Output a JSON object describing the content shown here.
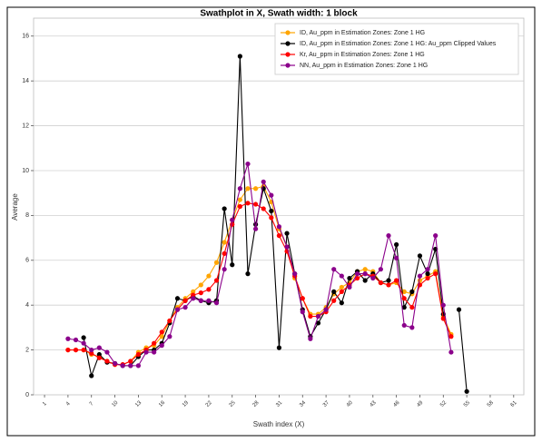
{
  "chart_data": {
    "type": "line",
    "title": "Swathplot in X, Swath width: 1 block",
    "x_label": "Swath index (X)",
    "y_label": "Average",
    "x": [
      4,
      5,
      6,
      7,
      8,
      9,
      10,
      11,
      12,
      13,
      14,
      15,
      16,
      17,
      18,
      19,
      20,
      21,
      22,
      23,
      24,
      25,
      26,
      27,
      28,
      29,
      30,
      31,
      32,
      33,
      34,
      35,
      36,
      37,
      38,
      39,
      40,
      41,
      42,
      43,
      44,
      45,
      46,
      47,
      48,
      49,
      50,
      51,
      52,
      53,
      54,
      55
    ],
    "series": [
      {
        "name": "ID, Au_ppm in Estimation Zones: Zone 1 HG",
        "color": "#ffa500",
        "values": [
          2.0,
          2.0,
          2.0,
          1.8,
          1.7,
          1.5,
          1.35,
          1.35,
          1.5,
          1.9,
          2.1,
          2.2,
          2.6,
          3.3,
          3.9,
          4.3,
          4.6,
          4.9,
          5.3,
          5.9,
          6.8,
          7.8,
          8.7,
          9.2,
          9.2,
          9.3,
          8.6,
          7.4,
          6.6,
          5.2,
          4.3,
          3.6,
          3.6,
          3.9,
          4.5,
          4.8,
          5.0,
          5.5,
          5.6,
          5.5,
          5.0,
          4.9,
          5.0,
          4.6,
          4.5,
          5.1,
          5.3,
          5.5,
          3.5,
          2.7,
          null,
          null
        ]
      },
      {
        "name": "ID, Au_ppm in Estimation Zones: Zone 1 HG: Au_ppm Clipped Values",
        "color": "#000000",
        "values": [
          null,
          null,
          2.55,
          0.85,
          1.8,
          1.45,
          1.4,
          1.3,
          1.3,
          1.7,
          2.0,
          2.0,
          2.3,
          3.2,
          4.3,
          4.2,
          4.4,
          4.2,
          4.1,
          4.2,
          8.3,
          5.8,
          15.1,
          5.4,
          7.6,
          9.2,
          8.2,
          2.1,
          7.2,
          5.4,
          3.8,
          2.6,
          3.2,
          3.8,
          4.6,
          4.1,
          5.2,
          5.5,
          5.1,
          5.4,
          5.0,
          5.1,
          6.7,
          3.9,
          4.6,
          6.2,
          5.4,
          6.5,
          3.6,
          null,
          3.8,
          0.15
        ]
      },
      {
        "name": "Kr, Au_ppm in Estimation Zones: Zone 1 HG",
        "color": "#ff0000",
        "values": [
          2.0,
          2.0,
          2.0,
          1.85,
          1.65,
          1.5,
          1.35,
          1.35,
          1.5,
          1.8,
          2.0,
          2.3,
          2.8,
          3.3,
          3.8,
          4.2,
          4.45,
          4.55,
          4.7,
          5.1,
          6.3,
          7.6,
          8.4,
          8.55,
          8.5,
          8.3,
          7.9,
          7.1,
          6.4,
          5.3,
          4.3,
          3.5,
          3.5,
          3.7,
          4.2,
          4.6,
          4.9,
          5.2,
          5.4,
          5.3,
          5.0,
          4.9,
          5.1,
          4.3,
          3.9,
          4.9,
          5.2,
          5.4,
          3.4,
          2.6,
          null,
          null
        ]
      },
      {
        "name": "NN, Au_ppm in Estimation Zones: Zone 1 HG",
        "color": "#8b008b",
        "values": [
          2.5,
          2.45,
          2.3,
          2.0,
          2.1,
          1.9,
          1.4,
          1.3,
          1.3,
          1.3,
          1.9,
          1.9,
          2.2,
          2.6,
          3.8,
          3.9,
          4.3,
          4.2,
          4.2,
          4.1,
          5.6,
          7.8,
          9.2,
          10.3,
          7.4,
          9.5,
          8.9,
          7.5,
          6.6,
          5.4,
          3.7,
          2.5,
          3.5,
          3.8,
          5.6,
          5.3,
          4.8,
          5.4,
          5.4,
          5.2,
          5.6,
          7.1,
          6.1,
          3.1,
          3.0,
          5.3,
          5.6,
          7.1,
          4.0,
          1.9,
          null,
          null
        ]
      }
    ],
    "xlim": [
      -0.4,
      62.3
    ],
    "ylim": [
      0,
      16.8
    ],
    "xticks": [
      1,
      4,
      7,
      10,
      13,
      16,
      19,
      22,
      25,
      28,
      31,
      34,
      37,
      40,
      43,
      46,
      49,
      52,
      55,
      58,
      61
    ],
    "yticks": [
      0,
      2,
      4,
      6,
      8,
      10,
      12,
      14,
      16
    ],
    "grid": true,
    "legend": "upper right"
  }
}
